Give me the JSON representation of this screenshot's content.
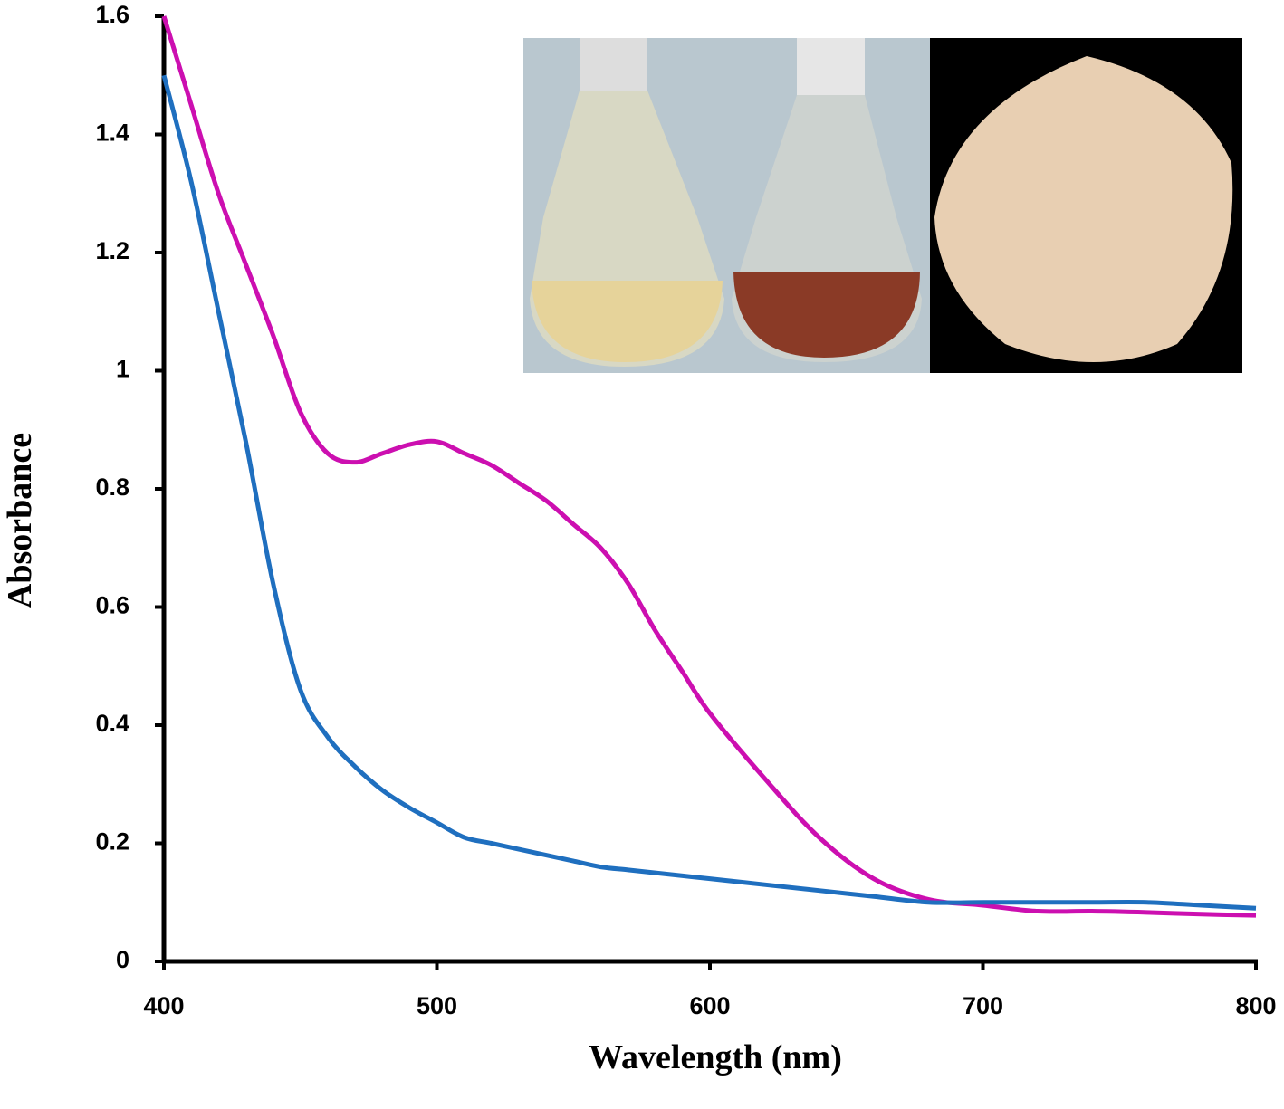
{
  "chart_data": {
    "type": "line",
    "x_label": "Wavelength (nm)",
    "y_label": "Absorbance",
    "x": [
      400,
      410,
      420,
      430,
      440,
      450,
      460,
      470,
      480,
      490,
      500,
      510,
      520,
      530,
      540,
      550,
      560,
      570,
      580,
      590,
      600,
      620,
      640,
      660,
      680,
      700,
      720,
      740,
      760,
      780,
      800
    ],
    "series": [
      {
        "color": "#cc0fb0",
        "values": [
          1.6,
          1.45,
          1.3,
          1.18,
          1.06,
          0.93,
          0.86,
          0.845,
          0.86,
          0.875,
          0.88,
          0.86,
          0.84,
          0.81,
          0.78,
          0.74,
          0.7,
          0.64,
          0.56,
          0.49,
          0.42,
          0.31,
          0.21,
          0.14,
          0.105,
          0.095,
          0.085,
          0.085,
          0.083,
          0.08,
          0.078
        ]
      },
      {
        "color": "#1f6fbf",
        "values": [
          1.5,
          1.32,
          1.1,
          0.88,
          0.64,
          0.46,
          0.38,
          0.33,
          0.29,
          0.26,
          0.235,
          0.21,
          0.2,
          0.19,
          0.18,
          0.17,
          0.16,
          0.155,
          0.15,
          0.145,
          0.14,
          0.13,
          0.12,
          0.11,
          0.1,
          0.1,
          0.1,
          0.1,
          0.1,
          0.095,
          0.09
        ]
      }
    ],
    "xlim": [
      400,
      800
    ],
    "xticks": [
      400,
      500,
      600,
      700,
      800
    ],
    "ylim": [
      0,
      1.6
    ],
    "yticks": [
      0,
      0.2,
      0.4,
      0.6,
      0.8,
      1,
      1.2,
      1.4,
      1.6
    ]
  }
}
